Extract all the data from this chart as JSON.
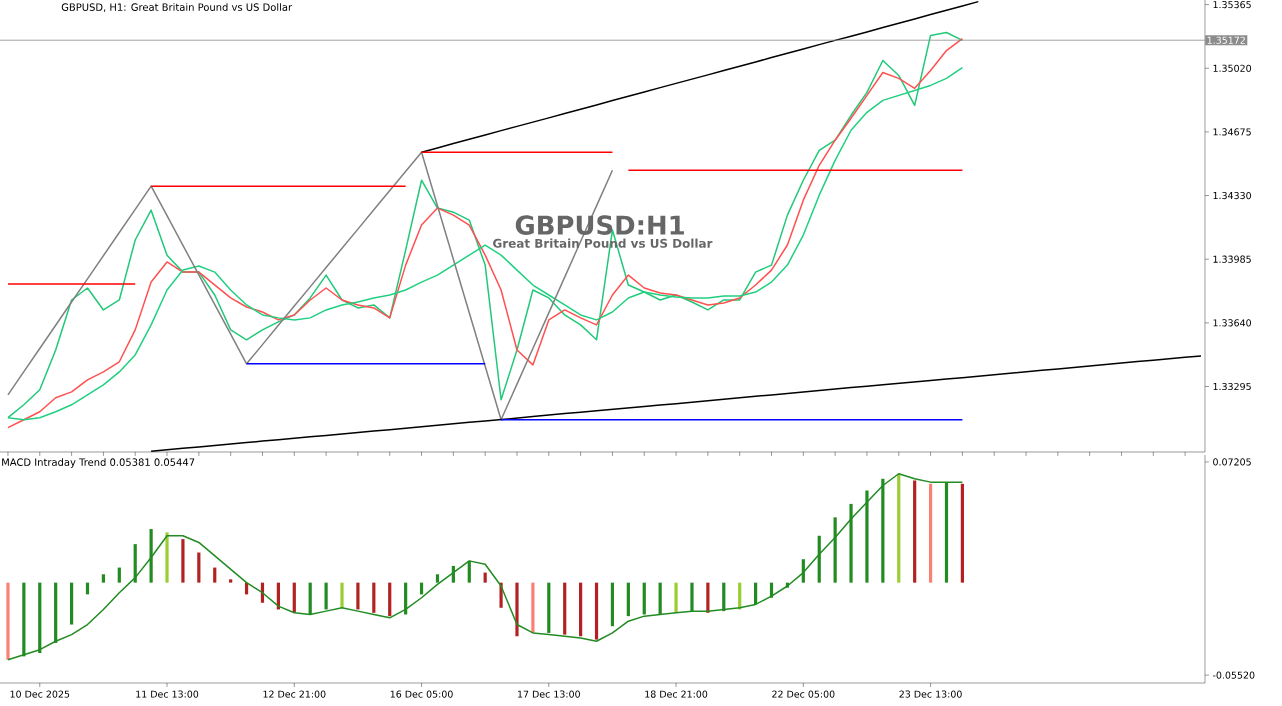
{
  "chart_data": [
    {
      "type": "line",
      "title": "GBPUSD, H1:  Great Britain Pound vs US Dollar",
      "annotations": [
        "GBPUSD:H1",
        "Great Britain Pound vs US Dollar"
      ],
      "categories": [
        null,
        null,
        null,
        null,
        null,
        null,
        null,
        null,
        null,
        null,
        null,
        null,
        null,
        null,
        null,
        null,
        null,
        null,
        null,
        null,
        null,
        null,
        null,
        null,
        null,
        null,
        null,
        null,
        null,
        null,
        null,
        null,
        null,
        null,
        null,
        null,
        null,
        null,
        null,
        null,
        null,
        null,
        null,
        null,
        null,
        null,
        null,
        null,
        null,
        null,
        null,
        null,
        null,
        null,
        null,
        null,
        null,
        null,
        null,
        null,
        null,
        null,
        null,
        null,
        null,
        null,
        null,
        null,
        null,
        null,
        null,
        null,
        null,
        null,
        null,
        null
      ],
      "ylim": [
        1.3294,
        1.3539
      ],
      "yticks": [
        {
          "value": 1.35365,
          "label": "1.35365"
        },
        {
          "value": 1.3502,
          "label": "1.35020"
        },
        {
          "value": 1.34675,
          "label": "1.34675"
        },
        {
          "value": 1.3433,
          "label": "1.34330"
        },
        {
          "value": 1.33985,
          "label": "1.33985"
        },
        {
          "value": 1.3364,
          "label": "1.33640"
        },
        {
          "value": 1.33295,
          "label": "1.33295"
        }
      ],
      "grid": false,
      "ref_lines": [
        {
          "axis": "y",
          "value": 1.35172,
          "label": "1.35172",
          "color": "#8c8c8c"
        }
      ],
      "series": [
        {
          "color": "#22c87a",
          "values": [
            1.33126,
            1.33196,
            1.33277,
            1.33493,
            1.33764,
            1.33829,
            1.3371,
            1.33764,
            1.34089,
            1.34251,
            1.34007,
            1.33915,
            1.33915,
            1.33791,
            1.33602,
            1.33548,
            1.33602,
            1.33645,
            1.33683,
            1.33775,
            1.33899,
            1.33764,
            1.33721,
            1.33737,
            1.33667,
            1.34034,
            1.34413,
            1.34262,
            1.3424,
            1.34197,
            1.33953,
            1.33223,
            1.33493,
            1.33818,
            1.33775,
            1.33683,
            1.33629,
            1.33548,
            1.34143,
            1.33845,
            1.33807,
            1.33764,
            1.33791,
            1.33753,
            1.3371,
            1.33764,
            1.33764,
            1.33915,
            1.33953,
            1.34224,
            1.34413,
            1.34575,
            1.3463,
            1.34765,
            1.34889,
            1.35062,
            1.34981,
            1.34819,
            1.35198,
            1.35214,
            1.35171,
            null,
            null,
            null,
            null,
            null,
            null,
            null,
            null,
            null,
            null,
            null,
            null,
            null,
            null,
            null
          ]
        },
        {
          "color": "#ff5050",
          "values": [
            1.33072,
            1.33115,
            1.33158,
            1.33234,
            1.33266,
            1.33331,
            1.33374,
            1.33429,
            1.33602,
            1.33861,
            1.3397,
            1.33915,
            1.33915,
            1.33845,
            1.33775,
            1.33726,
            1.33699,
            1.33656,
            1.33683,
            1.33764,
            1.33829,
            1.33764,
            1.33737,
            1.33721,
            1.33667,
            1.33953,
            1.3417,
            1.34262,
            1.34224,
            1.3417,
            1.34007,
            1.33818,
            1.33493,
            1.33412,
            1.33656,
            1.3371,
            1.33667,
            1.33629,
            1.33791,
            1.33899,
            1.33829,
            1.33802,
            1.33791,
            1.33764,
            1.33737,
            1.33748,
            1.33775,
            1.33845,
            1.33926,
            1.34062,
            1.34305,
            1.34494,
            1.3463,
            1.34749,
            1.34873,
            1.34997,
            1.34965,
            1.34911,
            1.35008,
            1.35116,
            1.35181,
            null,
            null,
            null,
            null,
            null,
            null,
            null,
            null,
            null,
            null,
            null,
            null,
            null,
            null,
            null
          ]
        },
        {
          "color": "#20d080",
          "values": [
            1.33126,
            1.33115,
            1.33126,
            1.33158,
            1.33196,
            1.3325,
            1.33304,
            1.33374,
            1.33466,
            1.33629,
            1.33818,
            1.33926,
            1.33948,
            1.33915,
            1.33818,
            1.33737,
            1.33683,
            1.33667,
            1.33656,
            1.33667,
            1.3371,
            1.33737,
            1.33753,
            1.33775,
            1.33791,
            1.33818,
            1.33861,
            1.33899,
            1.33953,
            1.34007,
            1.34061,
            1.34007,
            1.33926,
            1.33845,
            1.33791,
            1.33737,
            1.33683,
            1.33656,
            1.33699,
            1.33775,
            1.33807,
            1.33791,
            1.3378,
            1.33775,
            1.33775,
            1.33786,
            1.33786,
            1.33807,
            1.33861,
            1.33953,
            1.34116,
            1.34332,
            1.34521,
            1.34684,
            1.34781,
            1.34846,
            1.34873,
            1.349,
            1.34927,
            1.34965,
            1.35024,
            null,
            null,
            null,
            null,
            null,
            null,
            null,
            null,
            null,
            null,
            null,
            null,
            null,
            null,
            null
          ]
        },
        {
          "color": "#808080",
          "values": [
            1.3325,
            1.33376,
            1.33501,
            1.33627,
            1.33753,
            1.33878,
            1.34004,
            1.3413,
            1.34255,
            1.34381,
            1.34221,
            1.3406,
            1.339,
            1.33739,
            1.33579,
            1.33418,
            1.33522,
            1.33627,
            1.33731,
            1.33835,
            1.3394,
            1.34044,
            1.34148,
            1.34253,
            1.34357,
            1.34461,
            1.34565,
            1.34275,
            1.33985,
            1.33695,
            1.33405,
            1.33115,
            1.33308,
            1.33501,
            1.33694,
            1.33888,
            1.34081,
            1.34274,
            1.34467,
            null,
            null,
            null,
            null,
            null,
            null,
            null,
            null,
            null,
            null,
            null,
            null,
            null,
            null,
            null,
            null,
            null,
            null,
            null,
            null,
            null,
            null,
            null,
            null,
            null,
            null,
            null,
            null,
            null,
            null,
            null,
            null,
            null,
            null,
            null,
            null,
            null
          ]
        },
        {
          "color": "#000000",
          "values": [
            null,
            null,
            null,
            null,
            null,
            null,
            null,
            null,
            null,
            null,
            null,
            null,
            null,
            null,
            null,
            null,
            null,
            null,
            null,
            null,
            null,
            null,
            null,
            null,
            null,
            null,
            1.34565,
            1.34588,
            1.34612,
            1.34635,
            1.34658,
            1.34682,
            1.34705,
            1.34728,
            1.34751,
            1.34775,
            1.34798,
            1.34821,
            1.34845,
            1.34868,
            1.34891,
            1.34915,
            1.34938,
            1.34961,
            1.34984,
            1.35008,
            1.35031,
            1.35054,
            1.35078,
            1.35101,
            1.35124,
            1.35148,
            1.35171,
            1.35194,
            1.35217,
            1.35241,
            1.35264,
            1.35287,
            1.35311,
            1.35334,
            1.35357,
            1.35381,
            null,
            null,
            null,
            null,
            null,
            null,
            null,
            null,
            null,
            null,
            null,
            null,
            null,
            null
          ]
        },
        {
          "color": "#000000",
          "values": [
            null,
            null,
            null,
            null,
            null,
            null,
            null,
            null,
            null,
            1.32944,
            1.32952,
            1.3296,
            1.32967,
            1.32975,
            1.32983,
            1.32991,
            1.32999,
            1.33007,
            1.33014,
            1.33022,
            1.3303,
            1.33038,
            1.33046,
            1.33054,
            1.33061,
            1.33069,
            1.33077,
            1.33085,
            1.33093,
            1.33101,
            1.33108,
            1.33116,
            1.33124,
            1.33132,
            1.3314,
            1.33148,
            1.33155,
            1.33163,
            1.33171,
            1.33179,
            1.33187,
            1.33195,
            1.33202,
            1.3321,
            1.33218,
            1.33226,
            1.33234,
            1.33242,
            1.33249,
            1.33257,
            1.33265,
            1.33273,
            1.33281,
            1.33289,
            1.33296,
            1.33304,
            1.33312,
            1.3332,
            1.33328,
            1.33336,
            1.33343,
            1.33351,
            1.33359,
            1.33367,
            1.33375,
            1.33383,
            1.3339,
            1.33398,
            1.33406,
            1.33414,
            1.33422,
            1.3343,
            1.33437,
            1.33445,
            1.33453,
            1.33461
          ]
        },
        {
          "color": "#ff0000",
          "values": [
            1.33851,
            1.33851,
            1.33851,
            1.33851,
            1.33851,
            1.33851,
            1.33851,
            1.33851,
            1.33851,
            null,
            null,
            null,
            null,
            null,
            null,
            null,
            null,
            null,
            null,
            null,
            null,
            null,
            null,
            null,
            null,
            null,
            null,
            null,
            null,
            null,
            null,
            null,
            null,
            null,
            null,
            null,
            null,
            null,
            null,
            null,
            null,
            null,
            null,
            null,
            null,
            null,
            null,
            null,
            null,
            null,
            null,
            null,
            null,
            null,
            null,
            null,
            null,
            null,
            null,
            null,
            null,
            null,
            null,
            null,
            null,
            null,
            null,
            null,
            null,
            null,
            null,
            null,
            null,
            null,
            null,
            null
          ]
        },
        {
          "color": "#ff0000",
          "values": [
            null,
            null,
            null,
            null,
            null,
            null,
            null,
            null,
            null,
            1.34381,
            1.34381,
            1.34381,
            1.34381,
            1.34381,
            1.34381,
            1.34381,
            1.34381,
            1.34381,
            1.34381,
            1.34381,
            1.34381,
            1.34381,
            1.34381,
            1.34381,
            1.34381,
            1.34381,
            null,
            null,
            null,
            null,
            null,
            null,
            null,
            null,
            null,
            null,
            null,
            null,
            null,
            null,
            null,
            null,
            null,
            null,
            null,
            null,
            null,
            null,
            null,
            null,
            null,
            null,
            null,
            null,
            null,
            null,
            null,
            null,
            null,
            null,
            null,
            null,
            null,
            null,
            null,
            null,
            null,
            null,
            null,
            null,
            null,
            null,
            null,
            null,
            null,
            null
          ]
        },
        {
          "color": "#ff0000",
          "values": [
            null,
            null,
            null,
            null,
            null,
            null,
            null,
            null,
            null,
            null,
            null,
            null,
            null,
            null,
            null,
            null,
            null,
            null,
            null,
            null,
            null,
            null,
            null,
            null,
            null,
            null,
            1.34565,
            1.34565,
            1.34565,
            1.34565,
            1.34565,
            1.34565,
            1.34565,
            1.34565,
            1.34565,
            1.34565,
            1.34565,
            1.34565,
            1.34565,
            null,
            null,
            null,
            null,
            null,
            null,
            null,
            null,
            null,
            null,
            null,
            null,
            null,
            null,
            null,
            null,
            null,
            null,
            null,
            null,
            null,
            null,
            null,
            null,
            null,
            null,
            null,
            null,
            null,
            null,
            null,
            null,
            null,
            null,
            null,
            null,
            null
          ]
        },
        {
          "color": "#ff0000",
          "values": [
            null,
            null,
            null,
            null,
            null,
            null,
            null,
            null,
            null,
            null,
            null,
            null,
            null,
            null,
            null,
            null,
            null,
            null,
            null,
            null,
            null,
            null,
            null,
            null,
            null,
            null,
            null,
            null,
            null,
            null,
            null,
            null,
            null,
            null,
            null,
            null,
            null,
            null,
            null,
            1.34467,
            1.34467,
            1.34467,
            1.34467,
            1.34467,
            1.34467,
            1.34467,
            1.34467,
            1.34467,
            1.34467,
            1.34467,
            1.34467,
            1.34467,
            1.34467,
            1.34467,
            1.34467,
            1.34467,
            1.34467,
            1.34467,
            1.34467,
            1.34467,
            1.34467,
            null,
            null,
            null,
            null,
            null,
            null,
            null,
            null,
            null,
            null,
            null,
            null,
            null,
            null,
            null
          ]
        },
        {
          "color": "#0000ff",
          "values": [
            null,
            null,
            null,
            null,
            null,
            null,
            null,
            null,
            null,
            null,
            null,
            null,
            null,
            null,
            null,
            1.33418,
            1.33418,
            1.33418,
            1.33418,
            1.33418,
            1.33418,
            1.33418,
            1.33418,
            1.33418,
            1.33418,
            1.33418,
            1.33418,
            1.33418,
            1.33418,
            1.33418,
            1.33418,
            null,
            null,
            null,
            null,
            null,
            null,
            null,
            null,
            null,
            null,
            null,
            null,
            null,
            null,
            null,
            null,
            null,
            null,
            null,
            null,
            null,
            null,
            null,
            null,
            null,
            null,
            null,
            null,
            null,
            null,
            null,
            null,
            null,
            null,
            null,
            null,
            null,
            null,
            null,
            null,
            null,
            null,
            null,
            null,
            null
          ]
        },
        {
          "color": "#0000ff",
          "values": [
            null,
            null,
            null,
            null,
            null,
            null,
            null,
            null,
            null,
            null,
            null,
            null,
            null,
            null,
            null,
            null,
            null,
            null,
            null,
            null,
            null,
            null,
            null,
            null,
            null,
            null,
            null,
            null,
            null,
            null,
            null,
            1.33115,
            1.33115,
            1.33115,
            1.33115,
            1.33115,
            1.33115,
            1.33115,
            1.33115,
            1.33115,
            1.33115,
            1.33115,
            1.33115,
            1.33115,
            1.33115,
            1.33115,
            1.33115,
            1.33115,
            1.33115,
            1.33115,
            1.33115,
            1.33115,
            1.33115,
            1.33115,
            1.33115,
            1.33115,
            1.33115,
            1.33115,
            1.33115,
            1.33115,
            1.33115,
            null,
            null,
            null,
            null,
            null,
            null,
            null,
            null,
            null,
            null,
            null,
            null,
            null,
            null,
            null
          ]
        }
      ]
    },
    {
      "type": "bar",
      "title": "MACD Intraday Trend  0.05381 0.05447",
      "categories": [
        null,
        null,
        "10 Dec 2025",
        null,
        null,
        null,
        null,
        null,
        null,
        null,
        "11 Dec 13:00",
        null,
        null,
        null,
        null,
        null,
        null,
        null,
        "12 Dec 21:00",
        null,
        null,
        null,
        null,
        null,
        null,
        null,
        "16 Dec 05:00",
        null,
        null,
        null,
        null,
        null,
        null,
        null,
        "17 Dec 13:00",
        null,
        null,
        null,
        null,
        null,
        null,
        null,
        "18 Dec 21:00",
        null,
        null,
        null,
        null,
        null,
        null,
        null,
        "22 Dec 05:00",
        null,
        null,
        null,
        null,
        null,
        null,
        null,
        "23 Dec 13:00",
        null,
        null,
        null,
        null,
        null,
        null,
        null,
        null,
        null,
        null,
        null,
        null,
        null,
        null,
        null,
        null,
        null
      ],
      "ylim": [
        -0.0599,
        0.0762
      ],
      "yticks": [
        {
          "value": 0.07205,
          "label": "0.07205"
        },
        {
          "value": -0.0552,
          "label": "-0.05520"
        }
      ],
      "grid": false,
      "series": [
        {
          "values": [
            -0.046,
            -0.044,
            -0.042,
            -0.036,
            -0.025,
            -0.007,
            0.005,
            0.009,
            0.023,
            0.032,
            0.03,
            0.026,
            0.018,
            0.009,
            0.002,
            -0.007,
            -0.012,
            -0.016,
            -0.018,
            -0.019,
            -0.016,
            -0.015,
            -0.016,
            -0.018,
            -0.02,
            -0.019,
            -0.007,
            0.005,
            0.01,
            0.013,
            0.006,
            -0.015,
            -0.032,
            -0.03,
            -0.03,
            -0.031,
            -0.032,
            -0.034,
            -0.026,
            -0.02,
            -0.019,
            -0.019,
            -0.018,
            -0.017,
            -0.018,
            -0.017,
            -0.016,
            -0.013,
            -0.009,
            -0.003,
            0.014,
            0.028,
            0.039,
            0.047,
            0.055,
            0.062,
            0.065,
            0.061,
            0.059,
            0.06,
            0.059,
            null,
            null,
            null,
            null,
            null,
            null,
            null,
            null,
            null,
            null,
            null,
            null,
            null,
            null,
            null
          ],
          "colors": [
            "#fa8072",
            "#228b22",
            "#228b22",
            "#228b22",
            "#228b22",
            "#228b22",
            "#228b22",
            "#228b22",
            "#228b22",
            "#228b22",
            "#9acd32",
            "#b22222",
            "#b22222",
            "#b22222",
            "#b22222",
            "#b22222",
            "#b22222",
            "#b22222",
            "#b22222",
            "#228b22",
            "#228b22",
            "#9acd32",
            "#b22222",
            "#b22222",
            "#b22222",
            "#228b22",
            "#228b22",
            "#228b22",
            "#228b22",
            "#228b22",
            "#b22222",
            "#b22222",
            "#b22222",
            "#fa8072",
            "#228b22",
            "#b22222",
            "#b22222",
            "#b22222",
            "#228b22",
            "#228b22",
            "#228b22",
            "#228b22",
            "#9acd32",
            "#228b22",
            "#b22222",
            "#228b22",
            "#9acd32",
            "#228b22",
            "#228b22",
            "#228b22",
            "#228b22",
            "#228b22",
            "#228b22",
            "#228b22",
            "#228b22",
            "#228b22",
            "#9acd32",
            "#b22222",
            "#fa8072",
            "#228b22",
            "#b22222",
            null,
            null,
            null,
            null,
            null,
            null,
            null,
            null,
            null,
            null,
            null,
            null,
            null,
            null,
            null
          ]
        },
        {
          "type": "line",
          "color": "#228b22",
          "values": [
            -0.046,
            -0.043,
            -0.04,
            -0.035,
            -0.031,
            -0.025,
            -0.016,
            -0.006,
            0.003,
            0.015,
            0.028,
            0.028,
            0.024,
            0.016,
            0.008,
            0.0,
            -0.006,
            -0.014,
            -0.018,
            -0.019,
            -0.017,
            -0.015,
            -0.017,
            -0.019,
            -0.021,
            -0.016,
            -0.009,
            -0.001,
            0.006,
            0.013,
            0.011,
            -0.002,
            -0.025,
            -0.03,
            -0.031,
            -0.032,
            -0.033,
            -0.035,
            -0.03,
            -0.023,
            -0.02,
            -0.019,
            -0.018,
            -0.017,
            -0.017,
            -0.016,
            -0.015,
            -0.013,
            -0.008,
            -0.002,
            0.006,
            0.017,
            0.027,
            0.038,
            0.048,
            0.058,
            0.065,
            0.062,
            0.06,
            0.06,
            0.06,
            null,
            null,
            null,
            null,
            null,
            null,
            null,
            null,
            null,
            null,
            null,
            null,
            null,
            null,
            null
          ]
        }
      ]
    }
  ]
}
